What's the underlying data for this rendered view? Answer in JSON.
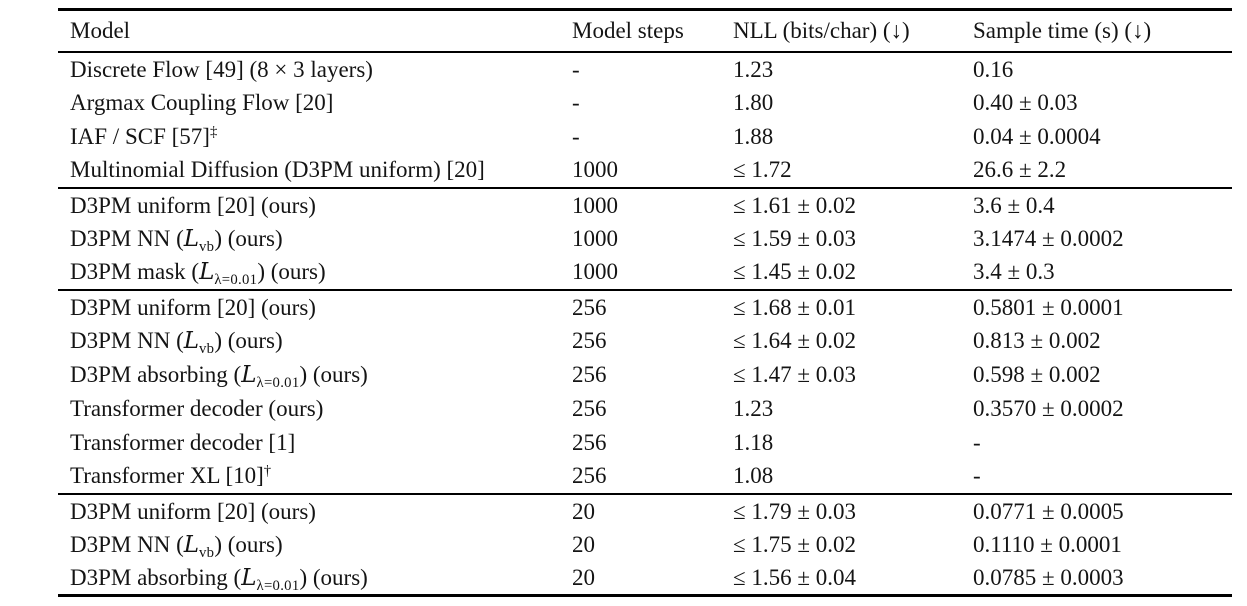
{
  "colors": {
    "background": "#ffffff",
    "text": "#141414",
    "rule": "#000000"
  },
  "table": {
    "columns": [
      "Model",
      "Model steps",
      "NLL (bits/char) (↓)",
      "Sample time (s) (↓)"
    ],
    "groups": [
      {
        "rows": [
          {
            "model": [
              {
                "t": "Discrete Flow [49] (8 × 3 layers)"
              }
            ],
            "steps": "-",
            "nll": "1.23",
            "time": "0.16"
          },
          {
            "model": [
              {
                "t": "Argmax Coupling Flow [20]"
              }
            ],
            "steps": "-",
            "nll": "1.80",
            "time": "0.40 ± 0.03"
          },
          {
            "model": [
              {
                "t": "IAF / SCF [57]"
              },
              {
                "t": "‡",
                "sup": true
              }
            ],
            "steps": "-",
            "nll": "1.88",
            "time": "0.04 ± 0.0004"
          },
          {
            "model": [
              {
                "t": "Multinomial Diffusion (D3PM uniform) [20]"
              }
            ],
            "steps": "1000",
            "nll": "≤ 1.72",
            "time": "26.6 ± 2.2"
          }
        ]
      },
      {
        "rows": [
          {
            "model": [
              {
                "t": "D3PM uniform [20] (ours)"
              }
            ],
            "steps": "1000",
            "nll": "≤ 1.61 ± 0.02",
            "time": "3.6 ± 0.4"
          },
          {
            "model": [
              {
                "t": "D3PM NN ("
              },
              {
                "t": "L",
                "i": true
              },
              {
                "t": "vb",
                "sub": true
              },
              {
                "t": ") (ours)"
              }
            ],
            "steps": "1000",
            "nll": "≤ 1.59 ± 0.03",
            "time": "3.1474 ± 0.0002"
          },
          {
            "model": [
              {
                "t": "D3PM mask ("
              },
              {
                "t": "L",
                "i": true
              },
              {
                "t": "λ=0.01",
                "sub": true
              },
              {
                "t": ") (ours)"
              }
            ],
            "steps": "1000",
            "nll": "≤ 1.45 ± 0.02",
            "time": "3.4 ± 0.3"
          }
        ]
      },
      {
        "rows": [
          {
            "model": [
              {
                "t": "D3PM uniform [20] (ours)"
              }
            ],
            "steps": "256",
            "nll": "≤ 1.68 ± 0.01",
            "time": "0.5801 ± 0.0001"
          },
          {
            "model": [
              {
                "t": "D3PM NN ("
              },
              {
                "t": "L",
                "i": true
              },
              {
                "t": "vb",
                "sub": true
              },
              {
                "t": ") (ours)"
              }
            ],
            "steps": "256",
            "nll": "≤ 1.64 ± 0.02",
            "time": "0.813 ± 0.002"
          },
          {
            "model": [
              {
                "t": "D3PM absorbing ("
              },
              {
                "t": "L",
                "i": true
              },
              {
                "t": "λ=0.01",
                "sub": true
              },
              {
                "t": ") (ours)"
              }
            ],
            "steps": "256",
            "nll": "≤ 1.47 ± 0.03",
            "time": "0.598 ± 0.002"
          },
          {
            "model": [
              {
                "t": "Transformer decoder (ours)"
              }
            ],
            "steps": "256",
            "nll": "1.23",
            "time": "0.3570 ± 0.0002"
          },
          {
            "model": [
              {
                "t": "Transformer decoder [1]"
              }
            ],
            "steps": "256",
            "nll": "1.18",
            "time": "-"
          },
          {
            "model": [
              {
                "t": "Transformer XL [10]"
              },
              {
                "t": "†",
                "sup": true
              }
            ],
            "steps": "256",
            "nll": "1.08",
            "time": "-"
          }
        ]
      },
      {
        "rows": [
          {
            "model": [
              {
                "t": "D3PM uniform [20] (ours)"
              }
            ],
            "steps": "20",
            "nll": "≤ 1.79 ± 0.03",
            "time": "0.0771 ± 0.0005"
          },
          {
            "model": [
              {
                "t": "D3PM NN ("
              },
              {
                "t": "L",
                "i": true
              },
              {
                "t": "vb",
                "sub": true
              },
              {
                "t": ") (ours)"
              }
            ],
            "steps": "20",
            "nll": "≤ 1.75 ± 0.02",
            "time": "0.1110 ± 0.0001"
          },
          {
            "model": [
              {
                "t": "D3PM absorbing ("
              },
              {
                "t": "L",
                "i": true
              },
              {
                "t": "λ=0.01",
                "sub": true
              },
              {
                "t": ") (ours)"
              }
            ],
            "steps": "20",
            "nll": "≤ 1.56 ± 0.04",
            "time": "0.0785 ± 0.0003"
          }
        ]
      }
    ]
  }
}
